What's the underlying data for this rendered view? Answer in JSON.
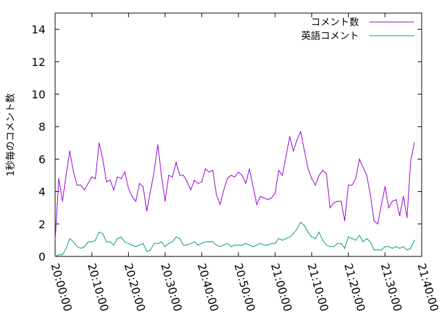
{
  "chart_data": {
    "type": "line",
    "title": "",
    "xlabel": "",
    "ylabel": "1秒毎のコメント数",
    "ylim": [
      0,
      15
    ],
    "yticks": [
      0,
      2,
      4,
      6,
      8,
      10,
      12,
      14
    ],
    "xlim": [
      0,
      6000
    ],
    "xticks": [
      {
        "t": 0,
        "label": "20:00:00"
      },
      {
        "t": 600,
        "label": "20:10:00"
      },
      {
        "t": 1200,
        "label": "20:20:00"
      },
      {
        "t": 1800,
        "label": "20:30:00"
      },
      {
        "t": 2400,
        "label": "20:40:00"
      },
      {
        "t": 3000,
        "label": "20:50:00"
      },
      {
        "t": 3600,
        "label": "21:00:00"
      },
      {
        "t": 4200,
        "label": "21:10:00"
      },
      {
        "t": 4800,
        "label": "21:20:00"
      },
      {
        "t": 5400,
        "label": "21:30:00"
      },
      {
        "t": 6000,
        "label": "21:40:00"
      }
    ],
    "grid": false,
    "legend": "top-right",
    "x_step_seconds": 60,
    "series": [
      {
        "name": "コメント数",
        "color": "#9400d3",
        "values": [
          1.0,
          4.8,
          3.4,
          5.0,
          6.5,
          5.2,
          4.4,
          4.4,
          4.1,
          4.5,
          4.9,
          4.8,
          7.0,
          6.0,
          4.6,
          4.7,
          4.1,
          4.9,
          4.8,
          5.2,
          4.2,
          3.7,
          3.4,
          4.5,
          4.3,
          2.8,
          4.0,
          5.2,
          6.9,
          5.0,
          3.4,
          5.0,
          4.9,
          5.8,
          5.0,
          5.0,
          4.6,
          4.1,
          4.7,
          4.5,
          4.6,
          5.4,
          5.2,
          5.3,
          3.8,
          3.2,
          4.1,
          4.8,
          5.0,
          4.9,
          5.2,
          5.0,
          4.5,
          5.4,
          4.3,
          3.2,
          3.7,
          3.6,
          3.5,
          3.6,
          3.9,
          5.3,
          5.0,
          6.2,
          7.4,
          6.5,
          7.2,
          7.7,
          6.5,
          5.4,
          4.8,
          4.4,
          5.0,
          5.3,
          5.1,
          3.0,
          3.3,
          3.4,
          3.4,
          2.2,
          4.4,
          4.4,
          4.8,
          6.0,
          5.5,
          5.0,
          3.8,
          2.2,
          2.0,
          3.2,
          4.3,
          3.0,
          3.4,
          3.5,
          2.5,
          3.7,
          2.4,
          5.9,
          7.0
        ]
      },
      {
        "name": "英語コメント",
        "color": "#009e73",
        "values": [
          0.0,
          0.1,
          0.1,
          0.5,
          1.1,
          0.9,
          0.6,
          0.5,
          0.6,
          0.9,
          0.9,
          1.0,
          1.5,
          1.4,
          0.9,
          0.9,
          0.7,
          1.1,
          1.2,
          0.9,
          0.8,
          0.7,
          0.6,
          0.7,
          0.8,
          0.3,
          0.4,
          0.8,
          0.8,
          0.9,
          0.6,
          0.8,
          0.9,
          1.2,
          1.1,
          0.7,
          0.7,
          0.8,
          0.9,
          0.7,
          0.8,
          0.9,
          0.9,
          0.9,
          0.7,
          0.6,
          0.7,
          0.8,
          0.6,
          0.7,
          0.7,
          0.7,
          0.8,
          0.7,
          0.6,
          0.7,
          0.8,
          0.7,
          0.7,
          0.8,
          0.8,
          1.1,
          1.0,
          1.1,
          1.2,
          1.4,
          1.7,
          2.1,
          1.9,
          1.5,
          1.2,
          1.1,
          1.5,
          1.0,
          0.7,
          0.6,
          0.6,
          0.8,
          0.8,
          0.5,
          1.2,
          1.1,
          1.0,
          1.3,
          0.9,
          1.1,
          0.9,
          0.4,
          0.4,
          0.4,
          0.6,
          0.6,
          0.5,
          0.6,
          0.5,
          0.6,
          0.4,
          0.5,
          1.0
        ]
      }
    ]
  }
}
